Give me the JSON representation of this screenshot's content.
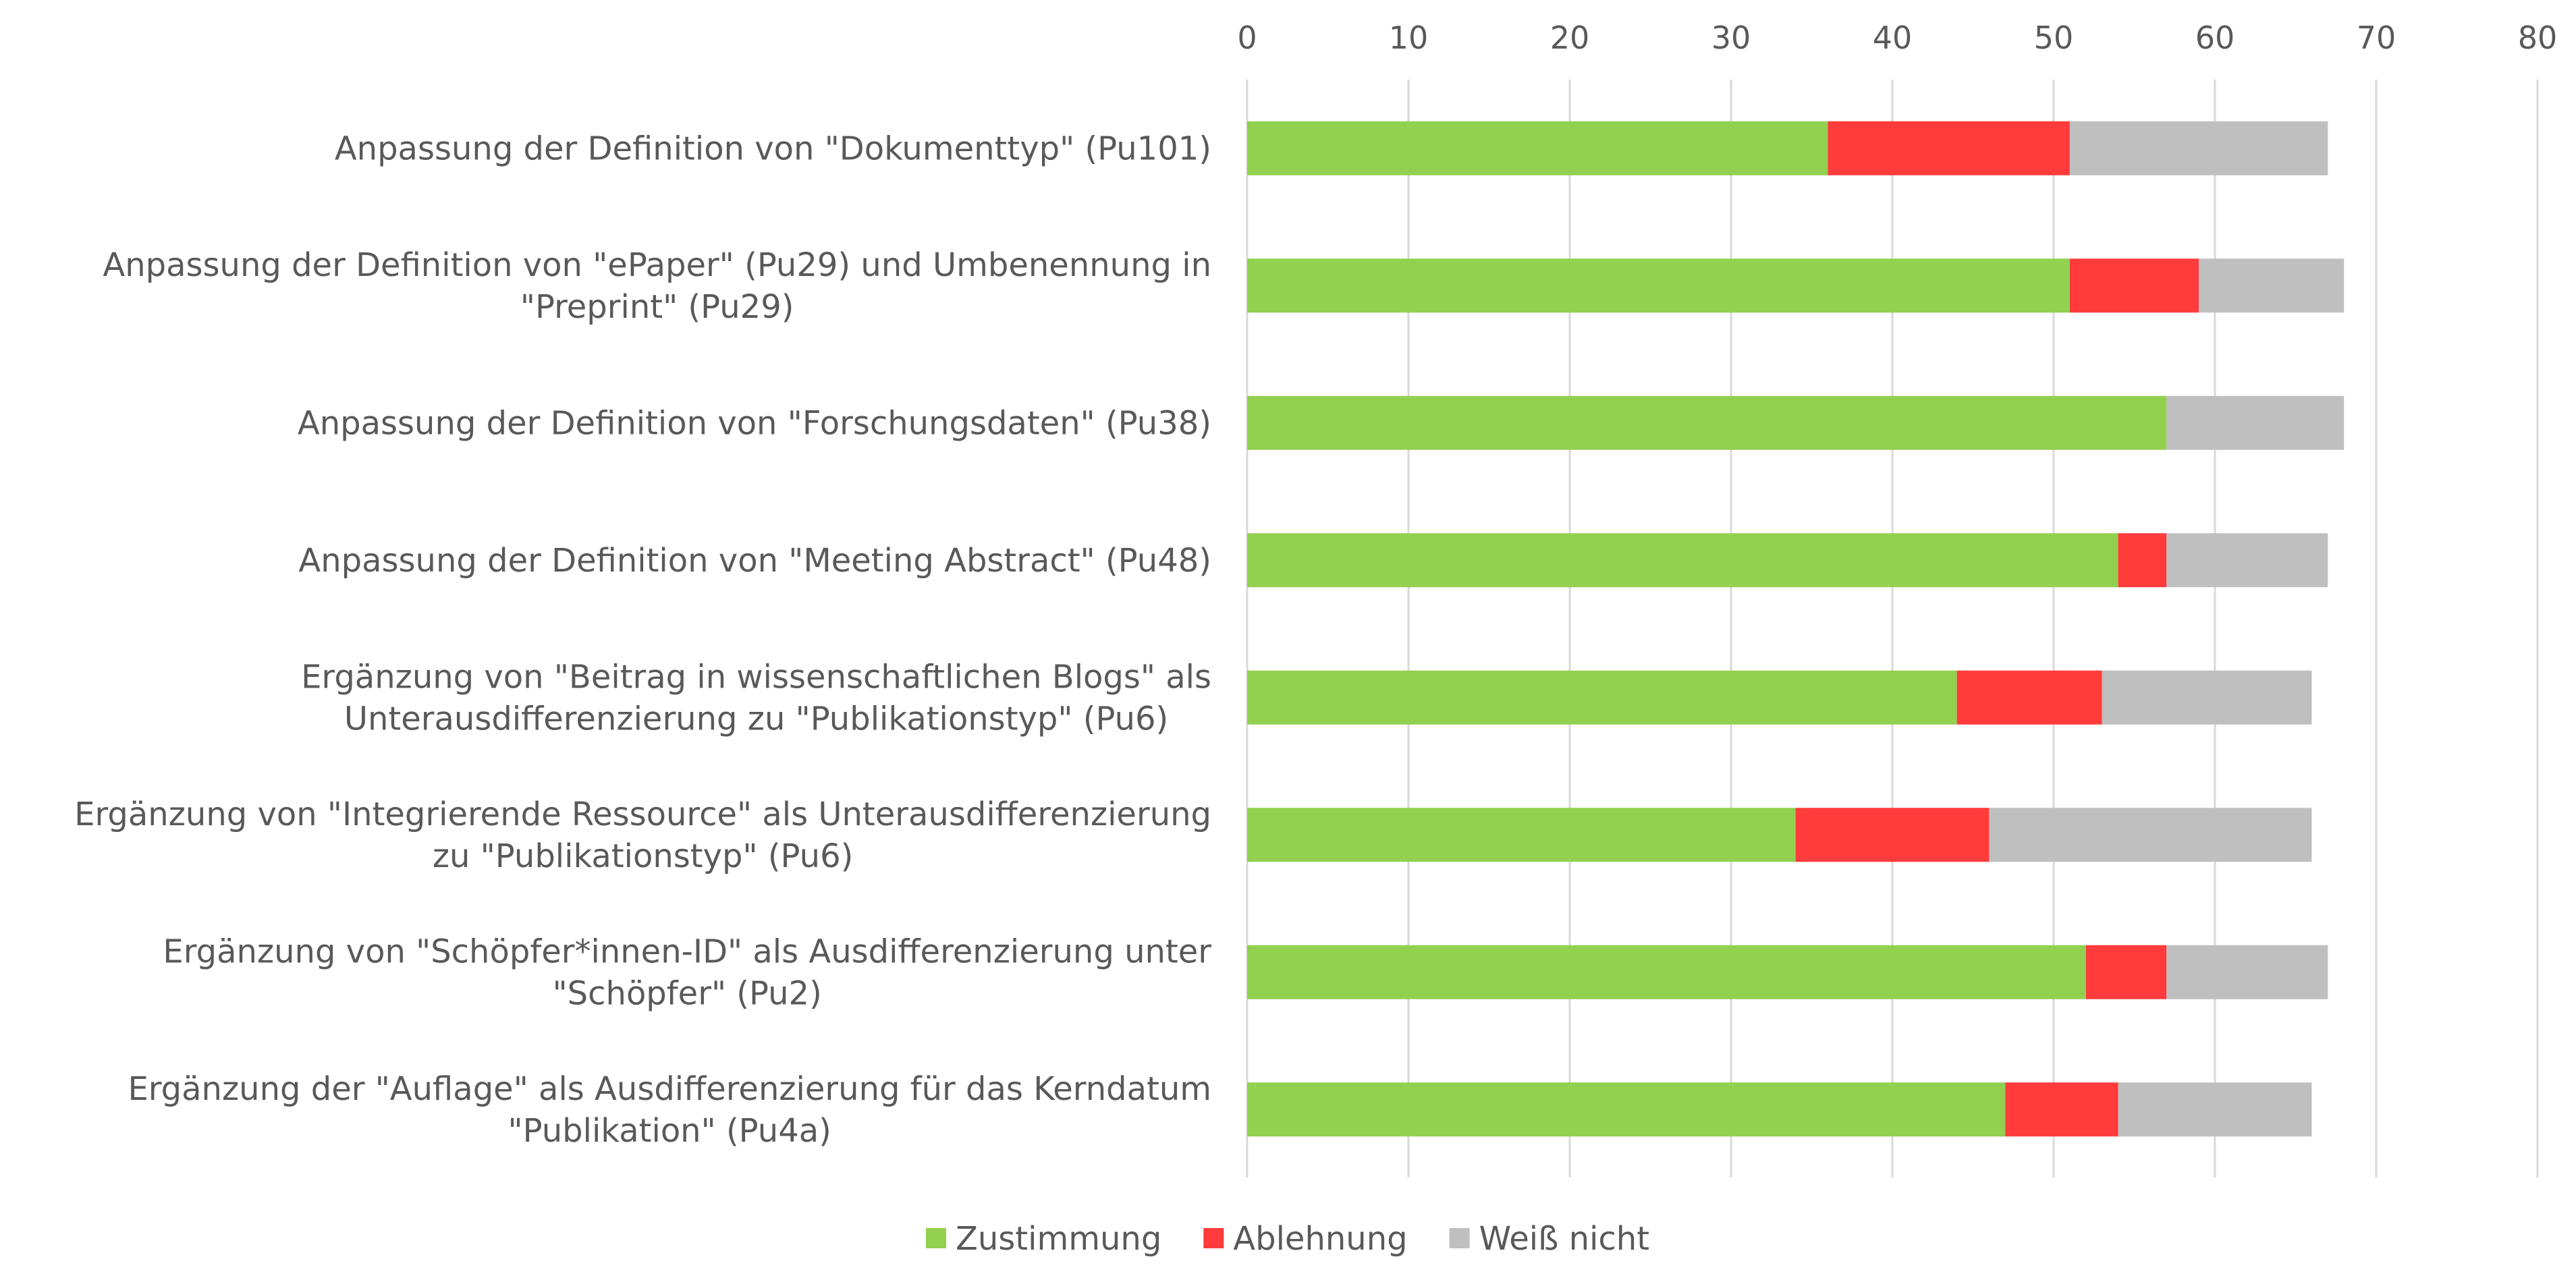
{
  "chart_data": {
    "type": "bar",
    "orientation": "horizontal",
    "stacked": true,
    "xlim": [
      0,
      80
    ],
    "x_ticks": [
      0,
      10,
      20,
      30,
      40,
      50,
      60,
      70,
      80
    ],
    "x_axis_position": "top",
    "grid": true,
    "legend_position": "bottom",
    "categories": [
      [
        "Anpassung der Definition von \"Dokumenttyp\" (Pu101)"
      ],
      [
        "Anpassung der Definition von \"ePaper\" (Pu29) und Umbenennung in",
        "\"Preprint\" (Pu29)"
      ],
      [
        "Anpassung der Definition von \"Forschungsdaten\" (Pu38)"
      ],
      [
        "Anpassung der Definition von \"Meeting Abstract\" (Pu48)"
      ],
      [
        "Ergänzung von \"Beitrag in wissenschaftlichen Blogs\" als",
        "Unterausdifferenzierung zu \"Publikationstyp\" (Pu6)"
      ],
      [
        "Ergänzung von \"Integrierende Ressource\" als Unterausdifferenzierung",
        "zu \"Publikationstyp\" (Pu6)"
      ],
      [
        "Ergänzung von \"Schöpfer*innen-ID\"  als Ausdifferenzierung unter",
        "\"Schöpfer\" (Pu2)"
      ],
      [
        "Ergänzung der \"Auflage\" als Ausdifferenzierung für das Kerndatum",
        "\"Publikation\" (Pu4a)"
      ]
    ],
    "series": [
      {
        "name": "Zustimmung",
        "color": "#92D050",
        "values": [
          36,
          51,
          57,
          54,
          44,
          34,
          52,
          47
        ]
      },
      {
        "name": "Ablehnung",
        "color": "#FF3B3B",
        "values": [
          15,
          8,
          0,
          3,
          9,
          12,
          5,
          7
        ]
      },
      {
        "name": "Weiß nicht",
        "color": "#BFBFBF",
        "values": [
          16,
          9,
          11,
          10,
          13,
          20,
          10,
          12
        ]
      }
    ]
  }
}
